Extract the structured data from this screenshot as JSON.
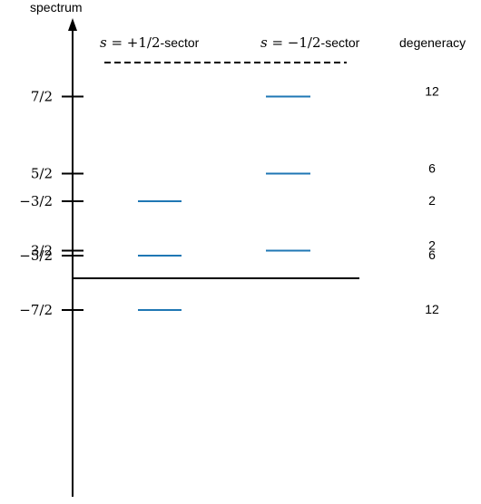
{
  "axis_title": "spectrum",
  "degeneracy_header": "degeneracy",
  "sectors": {
    "plus": {
      "symbol": "s",
      "relation": " = +1/2",
      "suffix": "-sector"
    },
    "minus": {
      "symbol": "s",
      "relation": " = −1/2",
      "suffix": "-sector"
    }
  },
  "levels": [
    {
      "label": "7/2",
      "value": 3.5,
      "sector": "minus",
      "degeneracy": "12"
    },
    {
      "label": "5/2",
      "value": 2.5,
      "sector": "minus",
      "degeneracy": "6"
    },
    {
      "label": "3/2",
      "value": 1.5,
      "sector": "minus",
      "degeneracy": "2"
    },
    {
      "label": "−3/2",
      "value": -1.5,
      "sector": "plus",
      "degeneracy": "2"
    },
    {
      "label": "−5/2",
      "value": -2.5,
      "sector": "plus",
      "degeneracy": "6"
    },
    {
      "label": "−7/2",
      "value": -3.5,
      "sector": "plus",
      "degeneracy": "12"
    }
  ],
  "colors": {
    "level": "#1f77b4",
    "axis": "#000000"
  }
}
